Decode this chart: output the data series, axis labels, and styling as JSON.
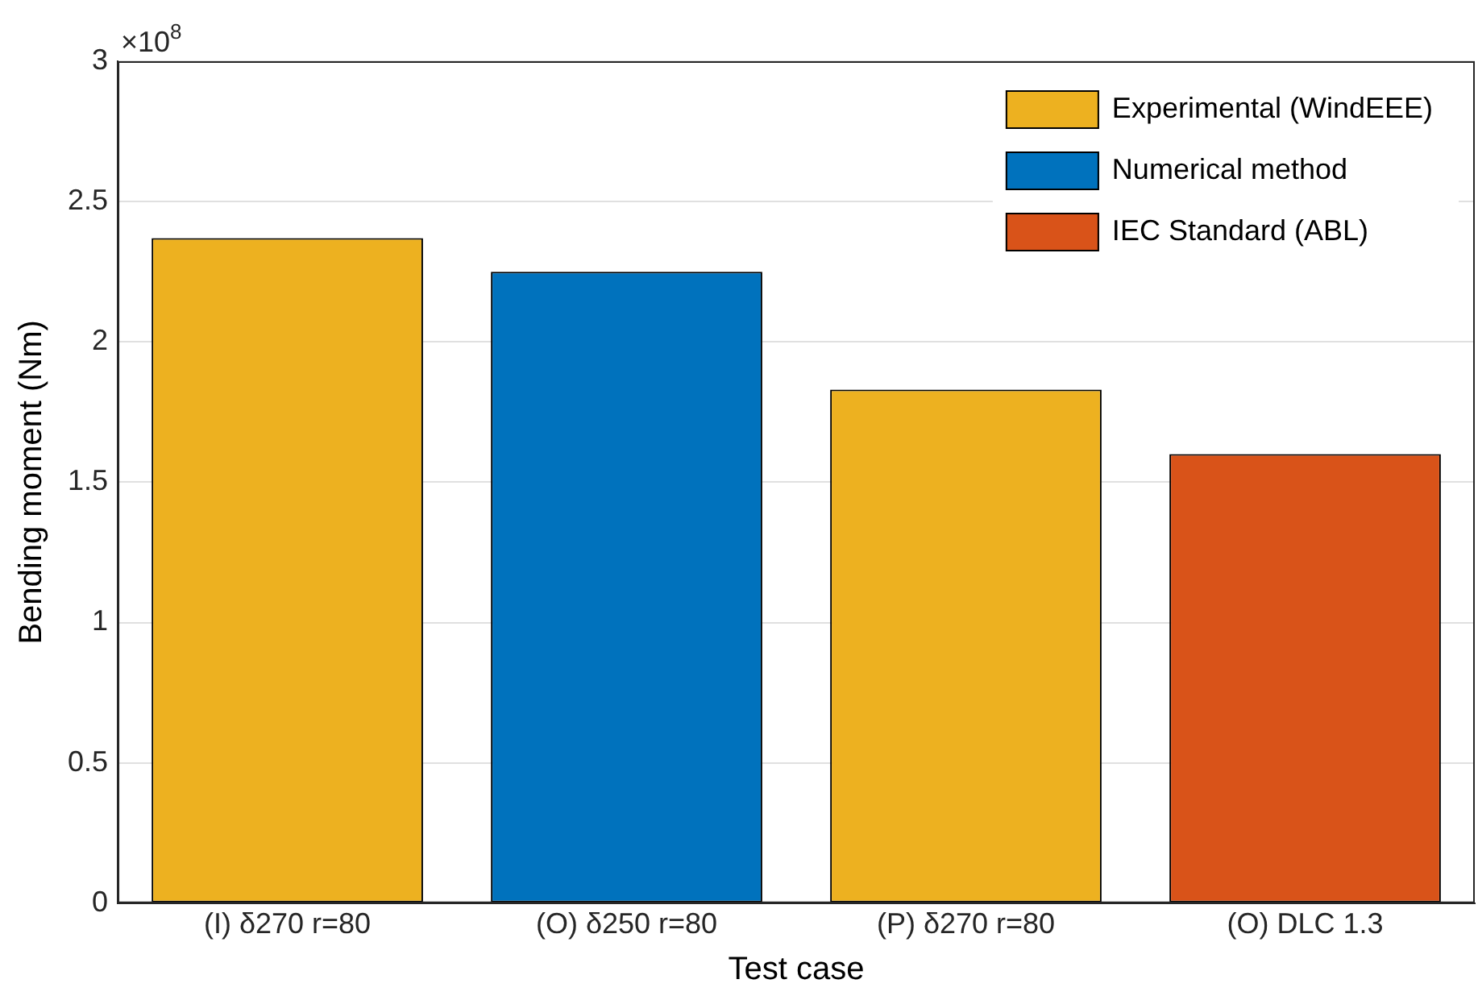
{
  "chart_data": {
    "type": "bar",
    "xlabel": "Test case",
    "ylabel": "Bending moment (Nm)",
    "categories": [
      "(I) δ270 r=80",
      "(O) δ250 r=80",
      "(P) δ270 r=80",
      "(O) DLC 1.3"
    ],
    "series": [
      {
        "name": "Experimental (WindEEE)",
        "color": "#edb120",
        "values": [
          2.37,
          null,
          1.83,
          null
        ]
      },
      {
        "name": "Numerical method",
        "color": "#0072bd",
        "values": [
          null,
          2.25,
          null,
          null
        ]
      },
      {
        "name": "IEC Standard (ABL)",
        "color": "#d95319",
        "values": [
          null,
          null,
          null,
          1.6
        ]
      }
    ],
    "ylim": [
      0,
      3
    ],
    "yticks": [
      0,
      0.5,
      1,
      1.5,
      2,
      2.5,
      3
    ],
    "grid": "y",
    "legend": "top right",
    "annotations": [
      "×10$^{8}$"
    ]
  }
}
